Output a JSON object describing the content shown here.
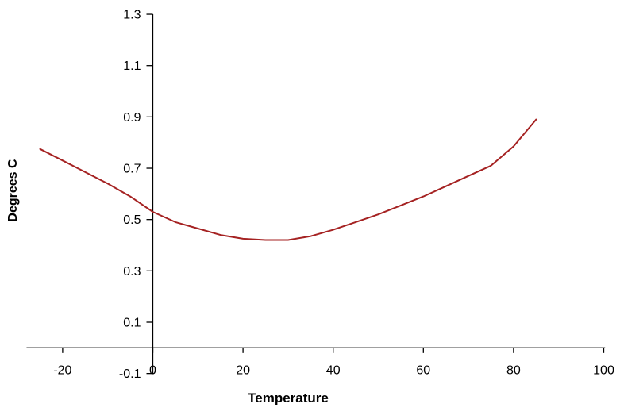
{
  "chart_data": {
    "type": "line",
    "title": "",
    "xlabel": "Temperature",
    "ylabel": "Degrees C",
    "x_ticks": [
      -20,
      0,
      20,
      40,
      60,
      80,
      100
    ],
    "y_ticks": [
      1.3,
      1.1,
      0.9,
      0.7,
      0.5,
      0.3,
      0.1,
      -0.1
    ],
    "xlim": [
      -28,
      100.3
    ],
    "ylim": [
      -0.1,
      1.3
    ],
    "grid": false,
    "legend": "none",
    "background": "#ffffff",
    "axis_color": "#000000",
    "line_color": "#a52222",
    "series": [
      {
        "x": [
          -25,
          -20,
          -15,
          -10,
          -5,
          0,
          5,
          10,
          15,
          20,
          25,
          30,
          35,
          40,
          45,
          50,
          55,
          60,
          65,
          70,
          75,
          80,
          85
        ],
        "y": [
          0.775,
          0.73,
          0.685,
          0.64,
          0.59,
          0.53,
          0.49,
          0.465,
          0.44,
          0.425,
          0.42,
          0.42,
          0.435,
          0.46,
          0.49,
          0.52,
          0.555,
          0.59,
          0.63,
          0.67,
          0.71,
          0.785,
          0.89
        ]
      }
    ]
  }
}
